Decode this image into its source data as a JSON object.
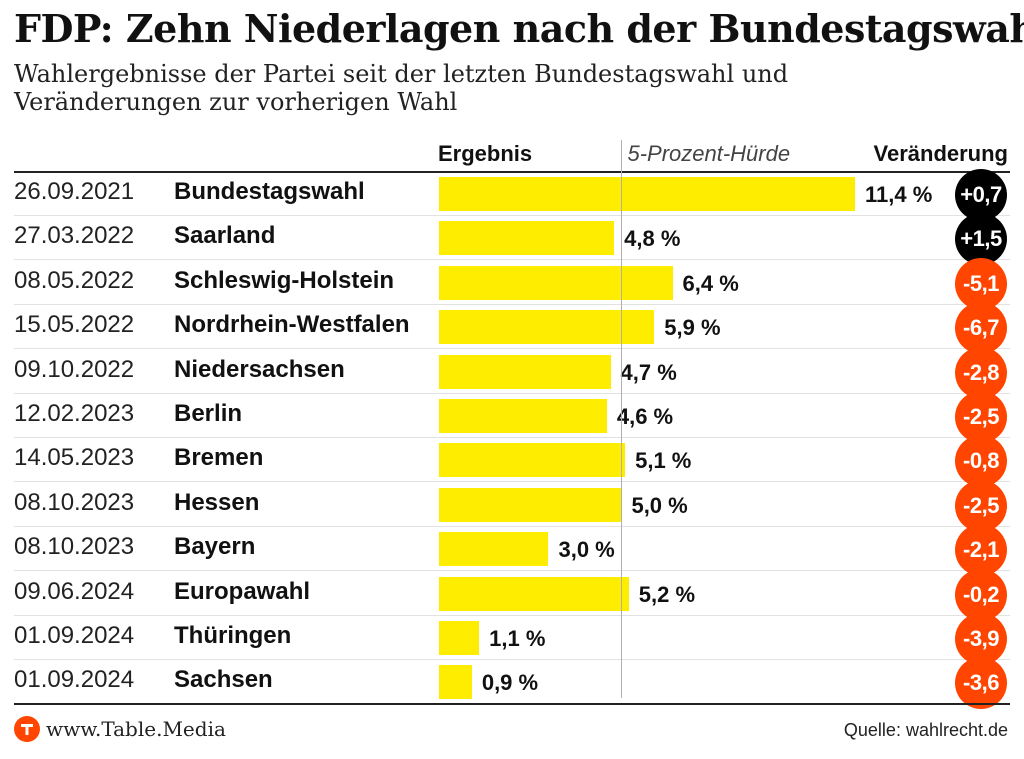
{
  "title": "FDP: Zehn Niederlagen nach der Bundestagswahl",
  "subtitle": "Wahlergebnisse der Partei seit der letzten Bundestagswahl und Veränderungen zur vorherigen Wahl",
  "columns": {
    "result": "Ergebnis",
    "threshold": "5-Prozent-Hürde",
    "change": "Veränderung"
  },
  "colors": {
    "bar": "#ffed00",
    "positive_change": "#000000",
    "negative_change": "#ff4500",
    "brand": "#ff4500"
  },
  "chart_data": {
    "type": "bar",
    "orientation": "horizontal",
    "unit": "%",
    "threshold": 5,
    "rows": [
      {
        "date": "26.09.2021",
        "label": "Bundestagswahl",
        "value": 11.4,
        "value_label": "11,4 %",
        "change": "+0,7"
      },
      {
        "date": "27.03.2022",
        "label": "Saarland",
        "value": 4.8,
        "value_label": "4,8 %",
        "change": "+1,5"
      },
      {
        "date": "08.05.2022",
        "label": "Schleswig-Holstein",
        "value": 6.4,
        "value_label": "6,4 %",
        "change": "-5,1"
      },
      {
        "date": "15.05.2022",
        "label": "Nordrhein-Westfalen",
        "value": 5.9,
        "value_label": "5,9 %",
        "change": "-6,7"
      },
      {
        "date": "09.10.2022",
        "label": "Niedersachsen",
        "value": 4.7,
        "value_label": "4,7 %",
        "change": "-2,8"
      },
      {
        "date": "12.02.2023",
        "label": "Berlin",
        "value": 4.6,
        "value_label": "4,6 %",
        "change": "-2,5"
      },
      {
        "date": "14.05.2023",
        "label": "Bremen",
        "value": 5.1,
        "value_label": "5,1 %",
        "change": "-0,8"
      },
      {
        "date": "08.10.2023",
        "label": "Hessen",
        "value": 5.0,
        "value_label": "5,0 %",
        "change": "-2,5"
      },
      {
        "date": "08.10.2023",
        "label": "Bayern",
        "value": 3.0,
        "value_label": "3,0 %",
        "change": "-2,1"
      },
      {
        "date": "09.06.2024",
        "label": "Europawahl",
        "value": 5.2,
        "value_label": "5,2 %",
        "change": "-0,2"
      },
      {
        "date": "01.09.2024",
        "label": "Thüringen",
        "value": 1.1,
        "value_label": "1,1 %",
        "change": "-3,9"
      },
      {
        "date": "01.09.2024",
        "label": "Sachsen",
        "value": 0.9,
        "value_label": "0,9 %",
        "change": "-3,6"
      }
    ]
  },
  "footer": {
    "brand": "www.Table.Media",
    "source": "Quelle: wahlrecht.de"
  }
}
